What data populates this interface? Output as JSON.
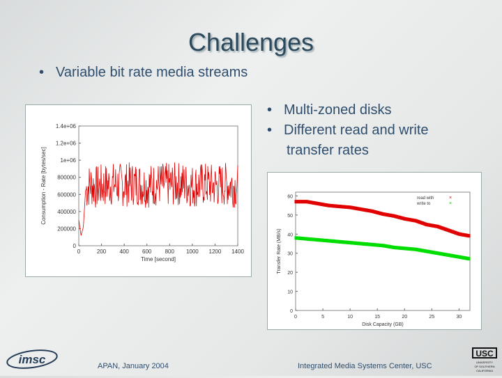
{
  "slide": {
    "title": "Challenges",
    "bullet_main": "Variable bit rate media streams",
    "bullets_right": [
      "Multi-zoned disks",
      "Different read and write",
      "transfer rates"
    ],
    "footer_left": "APAN, January 2004",
    "footer_right": "Integrated Media Systems Center, USC"
  },
  "logos": {
    "left": "imsc",
    "right": "USC",
    "right_caption": "UNIVERSITY OF SOUTHERN CALIFORNIA"
  },
  "chart_data": [
    {
      "type": "line",
      "xlabel": "Time [second]",
      "ylabel": "Consumption - Rate [bytes/sec]",
      "xticks": [
        "0",
        "200",
        "400",
        "600",
        "800",
        "1000",
        "1200",
        "1400"
      ],
      "yticks": [
        "0",
        "200000",
        "400000",
        "600000",
        "800000",
        "1e+06",
        "1.2e+06",
        "1.4e+06"
      ],
      "xlim": [
        0,
        1400
      ],
      "ylim": [
        0,
        1400000
      ],
      "series": [
        {
          "color": "#e00000",
          "points": [
            [
              0,
              300000
            ],
            [
              20,
              120000
            ],
            [
              40,
              220000
            ],
            [
              60,
              650000
            ],
            [
              100,
              720000
            ],
            [
              150,
              680000
            ],
            [
              200,
              700000
            ],
            [
              300,
              720000
            ],
            [
              400,
              710000
            ],
            [
              500,
              730000
            ],
            [
              600,
              700000
            ],
            [
              700,
              720000
            ],
            [
              800,
              710000
            ],
            [
              900,
              730000
            ],
            [
              1000,
              700000
            ],
            [
              1100,
              720000
            ],
            [
              1200,
              700000
            ],
            [
              1300,
              720000
            ],
            [
              1400,
              700000
            ]
          ]
        }
      ]
    },
    {
      "type": "scatter",
      "xlabel": "Disk Capacity (GB)",
      "ylabel": "Transfer Rate (MB/s)",
      "xticks": [
        "0",
        "5",
        "10",
        "15",
        "20",
        "25",
        "30"
      ],
      "yticks": [
        "0",
        "10",
        "20",
        "30",
        "40",
        "50",
        "60"
      ],
      "xlim": [
        0,
        32
      ],
      "ylim": [
        0,
        62
      ],
      "legend": [
        "read with",
        "write to"
      ],
      "series": [
        {
          "name": "read with",
          "color": "#e00000",
          "points": [
            [
              0,
              57
            ],
            [
              2,
              57
            ],
            [
              4,
              56
            ],
            [
              6,
              55
            ],
            [
              8,
              54.5
            ],
            [
              10,
              54
            ],
            [
              12,
              53
            ],
            [
              14,
              52
            ],
            [
              16,
              50.5
            ],
            [
              18,
              49.5
            ],
            [
              20,
              48
            ],
            [
              22,
              47
            ],
            [
              24,
              45
            ],
            [
              26,
              44
            ],
            [
              28,
              42
            ],
            [
              30,
              40
            ],
            [
              32,
              39
            ]
          ]
        },
        {
          "name": "write to",
          "color": "#00dd00",
          "points": [
            [
              0,
              38
            ],
            [
              2,
              37.5
            ],
            [
              4,
              37
            ],
            [
              6,
              36.5
            ],
            [
              8,
              36
            ],
            [
              10,
              35.5
            ],
            [
              12,
              35
            ],
            [
              14,
              34.5
            ],
            [
              16,
              34
            ],
            [
              18,
              33
            ],
            [
              20,
              32.5
            ],
            [
              22,
              32
            ],
            [
              24,
              31
            ],
            [
              26,
              30
            ],
            [
              28,
              29
            ],
            [
              30,
              28
            ],
            [
              32,
              27
            ]
          ]
        }
      ]
    }
  ]
}
